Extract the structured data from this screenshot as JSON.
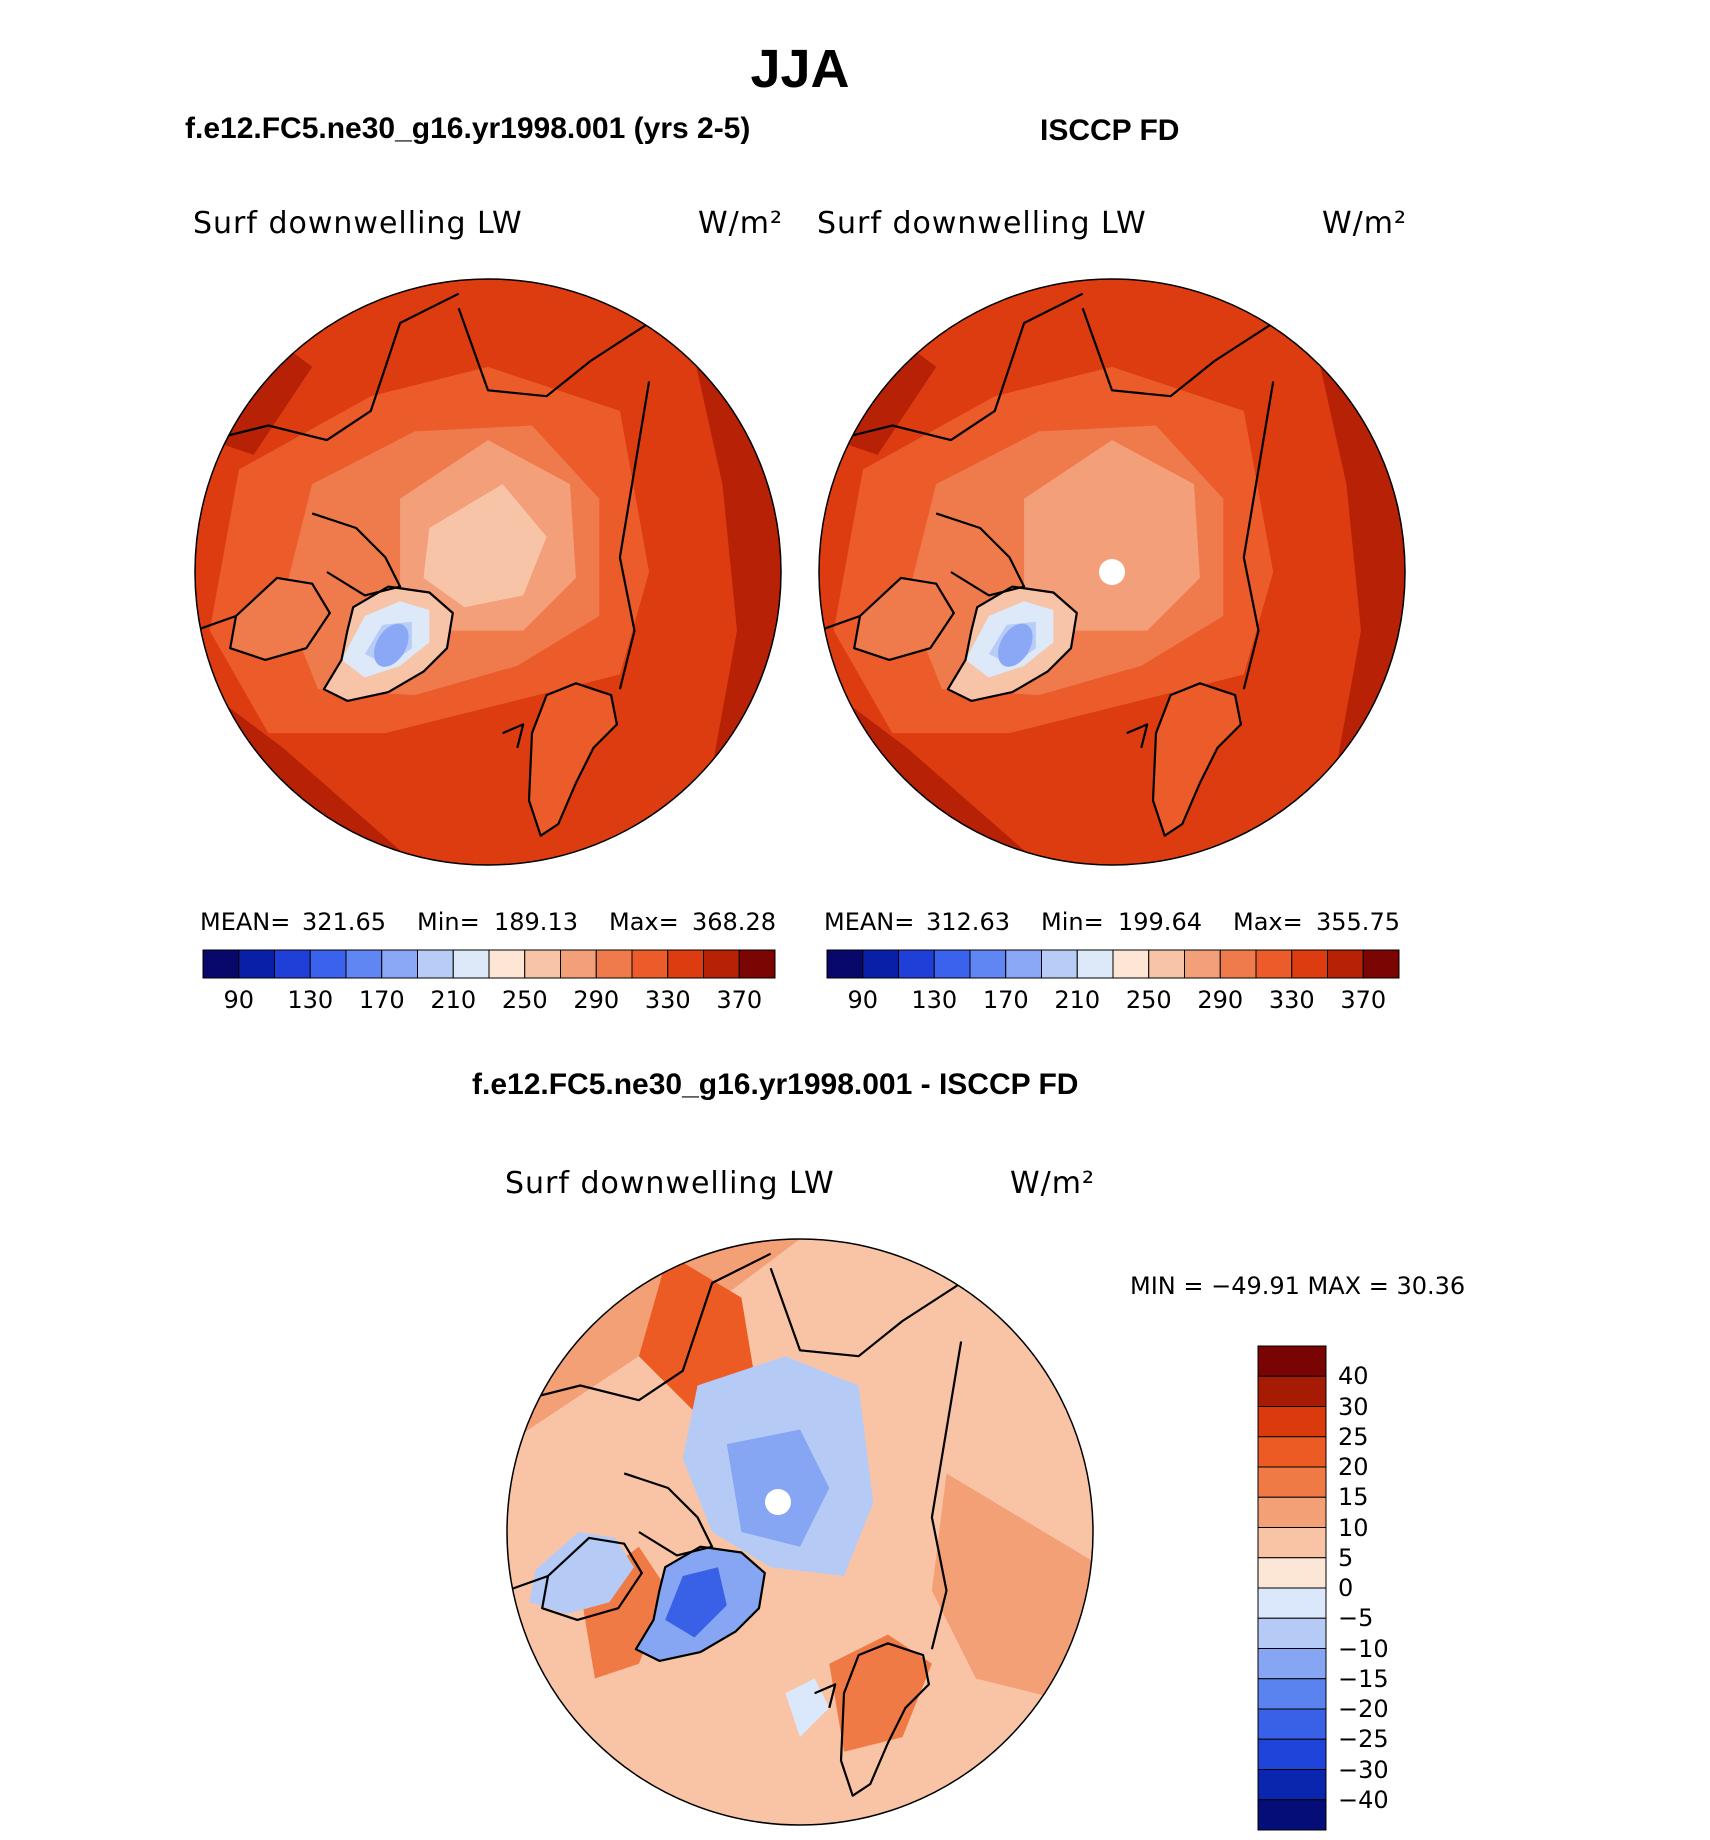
{
  "figure": {
    "title": "JJA"
  },
  "colors": {
    "abs_scale": [
      "#08086b",
      "#0a1fa8",
      "#1f3fd8",
      "#3b62ec",
      "#5f86f3",
      "#8aa8f5",
      "#b7cdf7",
      "#dde9f8",
      "#fde6d6",
      "#f8c4a8",
      "#f3a07a",
      "#ef7b4c",
      "#ec5b2a",
      "#dd3c10",
      "#b72106",
      "#7a0503"
    ],
    "diff_scale": [
      "#050d78",
      "#0b26ae",
      "#1e44da",
      "#3961e7",
      "#5b83ef",
      "#86a6f4",
      "#b5cbf6",
      "#dbe8fb",
      "#fce6d6",
      "#f8c4a5",
      "#f4a076",
      "#f07a46",
      "#ec5b24",
      "#da3a0c",
      "#a51b03",
      "#7a0303"
    ],
    "land_outline": "#000000",
    "missing": "#ffffff"
  },
  "panels": [
    {
      "title": "f.e12.FC5.ne30_g16.yr1998.001 (yrs 2-5)",
      "variable": "Surf downwelling LW",
      "units": "W/m²",
      "mean_label": "MEAN=",
      "mean": "321.65",
      "min_label": "Min=",
      "min": "189.13",
      "max_label": "Max=",
      "max": "368.28"
    },
    {
      "title": "ISCCP FD",
      "variable": "Surf downwelling LW",
      "units": "W/m²",
      "mean_label": "MEAN=",
      "mean": "312.63",
      "min_label": "Min=",
      "min": "199.64",
      "max_label": "Max=",
      "max": "355.75"
    },
    {
      "title": "f.e12.FC5.ne30_g16.yr1998.001 - ISCCP FD",
      "variable": "Surf downwelling LW",
      "units": "W/m²",
      "minmax_text": "MIN = −49.91 MAX =   30.36"
    }
  ],
  "chart_data": [
    {
      "type": "heatmap",
      "projection": "north polar stereographic",
      "title": "f.e12.FC5.ne30_g16.yr1998.001 (yrs 2-5)",
      "variable": "Surf downwelling LW",
      "units": "W/m²",
      "mean": 321.65,
      "min": 189.13,
      "max": 368.28,
      "colorbar_levels": [
        90,
        130,
        170,
        210,
        250,
        290,
        330,
        370
      ],
      "colorbar_bins": 16
    },
    {
      "type": "heatmap",
      "projection": "north polar stereographic",
      "title": "ISCCP FD",
      "variable": "Surf downwelling LW",
      "units": "W/m²",
      "mean": 312.63,
      "min": 199.64,
      "max": 355.75,
      "colorbar_levels": [
        90,
        130,
        170,
        210,
        250,
        290,
        330,
        370
      ],
      "colorbar_bins": 16
    },
    {
      "type": "heatmap",
      "projection": "north polar stereographic",
      "title": "f.e12.FC5.ne30_g16.yr1998.001 - ISCCP FD",
      "variable": "Surf downwelling LW",
      "units": "W/m²",
      "min": -49.91,
      "max": 30.36,
      "colorbar_levels": [
        "40",
        "30",
        "25",
        "20",
        "15",
        "10",
        "5",
        "0",
        "−5",
        "−10",
        "−15",
        "−20",
        "−25",
        "−30",
        "−40"
      ],
      "colorbar_bins": 16
    }
  ]
}
